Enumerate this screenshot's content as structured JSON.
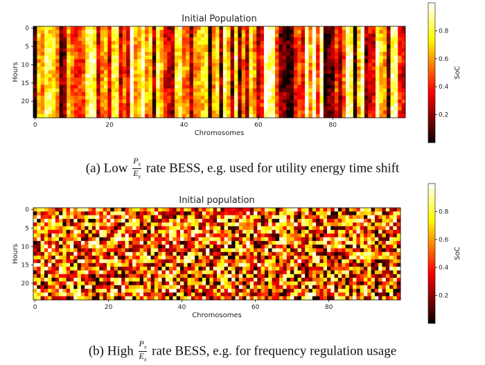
{
  "chart_data": [
    {
      "type": "heatmap",
      "title": "Initial Population",
      "xlabel": "Chromosomes",
      "ylabel": "Hours",
      "x_ticks": [
        0,
        20,
        40,
        60,
        80
      ],
      "y_ticks": [
        0,
        5,
        10,
        15,
        20
      ],
      "n_columns": 100,
      "n_rows": 25,
      "xlim": [
        0,
        99
      ],
      "ylim": [
        0,
        24
      ],
      "colormap": "hot",
      "colorbar": {
        "label": "SoC",
        "ticks": [
          0.2,
          0.4,
          0.6,
          0.8
        ],
        "range": [
          0,
          1
        ]
      },
      "pattern": "column-correlated vertical streaks"
    },
    {
      "type": "heatmap",
      "title": "Initial population",
      "xlabel": "Chromosomes",
      "ylabel": "Hours",
      "x_ticks": [
        0,
        20,
        40,
        60,
        80
      ],
      "y_ticks": [
        0,
        5,
        10,
        15,
        20
      ],
      "n_columns": 100,
      "n_rows": 25,
      "xlim": [
        0,
        99
      ],
      "ylim": [
        0,
        24
      ],
      "colormap": "hot",
      "colorbar": {
        "label": "SoC",
        "ticks": [
          0.2,
          0.4,
          0.6,
          0.8
        ],
        "range": [
          0,
          1
        ]
      },
      "pattern": "independent random cells"
    }
  ],
  "captions": {
    "a": {
      "prefix": "(a) Low",
      "num": "P",
      "num_sub": "x",
      "den": "E",
      "den_sub": "x",
      "suffix": "rate BESS, e.g. used for utility energy time shift"
    },
    "b": {
      "prefix": "(b) High",
      "num": "P",
      "num_sub": "x",
      "den": "E",
      "den_sub": "x",
      "suffix": "rate BESS, e.g. for frequency regulation usage"
    }
  }
}
